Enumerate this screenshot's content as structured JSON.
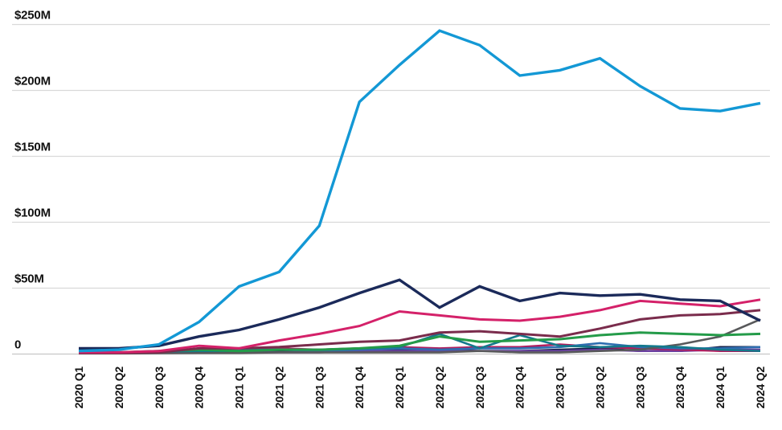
{
  "chart_data": {
    "type": "line",
    "title": "",
    "xlabel": "",
    "ylabel": "",
    "unit": "$M",
    "legend": "none",
    "grid": "horizontal",
    "x_categories": [
      "2020 Q1",
      "2020 Q2",
      "2020 Q3",
      "2020 Q4",
      "2021 Q1",
      "2021 Q2",
      "2021 Q3",
      "2021 Q4",
      "2022 Q1",
      "2022 Q2",
      "2022 Q3",
      "2022 Q4",
      "2023 Q1",
      "2023 Q2",
      "2023 Q3",
      "2023 Q4",
      "2024 Q1",
      "2024 Q2"
    ],
    "y_axis": {
      "min": 0,
      "max": 250,
      "tick_values": [
        250,
        200,
        150,
        100,
        50,
        0
      ],
      "tick_labels": [
        "$250M",
        "$200M",
        "$150M",
        "$100M",
        "$50M",
        "0"
      ]
    },
    "series": [
      {
        "name": "cyan-line",
        "color": "#1398d5",
        "values": [
          2,
          3,
          7,
          24,
          51,
          62,
          97,
          191,
          219,
          245,
          234,
          211,
          215,
          224,
          203,
          186,
          184,
          190
        ]
      },
      {
        "name": "navy-line",
        "color": "#1b2a5a",
        "values": [
          4,
          4,
          6,
          13,
          18,
          26,
          35,
          46,
          56,
          35,
          51,
          40,
          46,
          44,
          45,
          41,
          40,
          25
        ]
      },
      {
        "name": "pink-line",
        "color": "#d42169",
        "values": [
          1,
          1,
          2,
          6,
          4,
          10,
          15,
          21,
          32,
          29,
          26,
          25,
          28,
          33,
          40,
          38,
          36,
          41
        ]
      },
      {
        "name": "maroon-line",
        "color": "#7a2c4c",
        "values": [
          0.5,
          0.5,
          1,
          4,
          4,
          5,
          7,
          9,
          10,
          16,
          17,
          15,
          13,
          19,
          26,
          29,
          30,
          33
        ]
      },
      {
        "name": "green-line",
        "color": "#249b49",
        "values": [
          1,
          1,
          2,
          3,
          2,
          3,
          3,
          4,
          6,
          13,
          9,
          10,
          11,
          14,
          16,
          15,
          14,
          15
        ]
      },
      {
        "name": "teal-line",
        "color": "#13798c",
        "values": [
          0.5,
          1,
          1.5,
          2,
          2,
          3,
          3,
          4,
          5,
          15,
          4,
          14,
          6,
          5,
          6,
          5,
          3,
          2
        ]
      },
      {
        "name": "grey-line",
        "color": "#58595b",
        "values": [
          0.2,
          0.2,
          0.3,
          0.5,
          0.5,
          1,
          1,
          1,
          1,
          1,
          2,
          1,
          1,
          2,
          3,
          7,
          13,
          26
        ]
      },
      {
        "name": "blue-line",
        "color": "#2e6eb0",
        "values": [
          1,
          1,
          2,
          3,
          3,
          3,
          2,
          3,
          4,
          3,
          4,
          4,
          5,
          8,
          5,
          4,
          4,
          5
        ]
      },
      {
        "name": "crimson-line",
        "color": "#b01e5e",
        "values": [
          0.5,
          1,
          1,
          2,
          3,
          4,
          3,
          4,
          5,
          4,
          5,
          5,
          7,
          5,
          4,
          3,
          2,
          2
        ]
      },
      {
        "name": "purple-line",
        "color": "#6b41a1",
        "values": [
          0.2,
          0.3,
          0.5,
          1,
          1,
          1,
          1,
          2,
          2,
          2,
          2,
          2,
          2,
          3,
          2,
          2,
          3,
          3
        ]
      },
      {
        "name": "darknavy-line",
        "color": "#16224a",
        "values": [
          1,
          1,
          1,
          2,
          2,
          2,
          2,
          2,
          3,
          3,
          2,
          2,
          3,
          4,
          2,
          2,
          5,
          5
        ]
      }
    ]
  },
  "colors": {
    "background": "#ffffff",
    "gridline": "#d9d9d9",
    "zero_line": "#c7c7c7",
    "axis_text": "#111111"
  }
}
